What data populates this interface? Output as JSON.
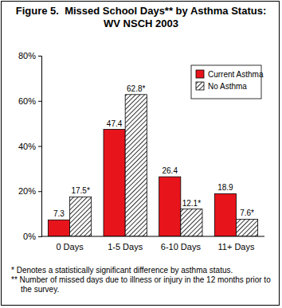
{
  "chart_data": {
    "type": "bar",
    "title": "Figure 5.  Missed School Days** by Asthma Status: WV NSCH 2003",
    "categories": [
      "0 Days",
      "1-5 Days",
      "6-10 Days",
      "11+ Days"
    ],
    "series": [
      {
        "name": "Current Asthma",
        "color": "#e8141c",
        "values": [
          7.3,
          47.4,
          26.4,
          18.9
        ]
      },
      {
        "name": "No Asthma",
        "color": "#000000",
        "values": [
          17.5,
          62.8,
          12.1,
          7.6
        ],
        "value_labels": [
          "17.5*",
          "62.8*",
          "12.1*",
          "7.6*"
        ]
      }
    ],
    "ylim": [
      0,
      80
    ],
    "yticks": [
      {
        "value": 0,
        "label": "0%"
      },
      {
        "value": 20,
        "label": "20%"
      },
      {
        "value": 40,
        "label": "40%"
      },
      {
        "value": 60,
        "label": "60%"
      },
      {
        "value": 80,
        "label": "80%"
      }
    ],
    "grid": false,
    "legend": "upper right",
    "data_labels": true,
    "annotations": [
      "* Denotes a statistically significant difference by asthma status.",
      "** Number of missed days due to illness or injury in the 12 months prior to the survey."
    ]
  }
}
